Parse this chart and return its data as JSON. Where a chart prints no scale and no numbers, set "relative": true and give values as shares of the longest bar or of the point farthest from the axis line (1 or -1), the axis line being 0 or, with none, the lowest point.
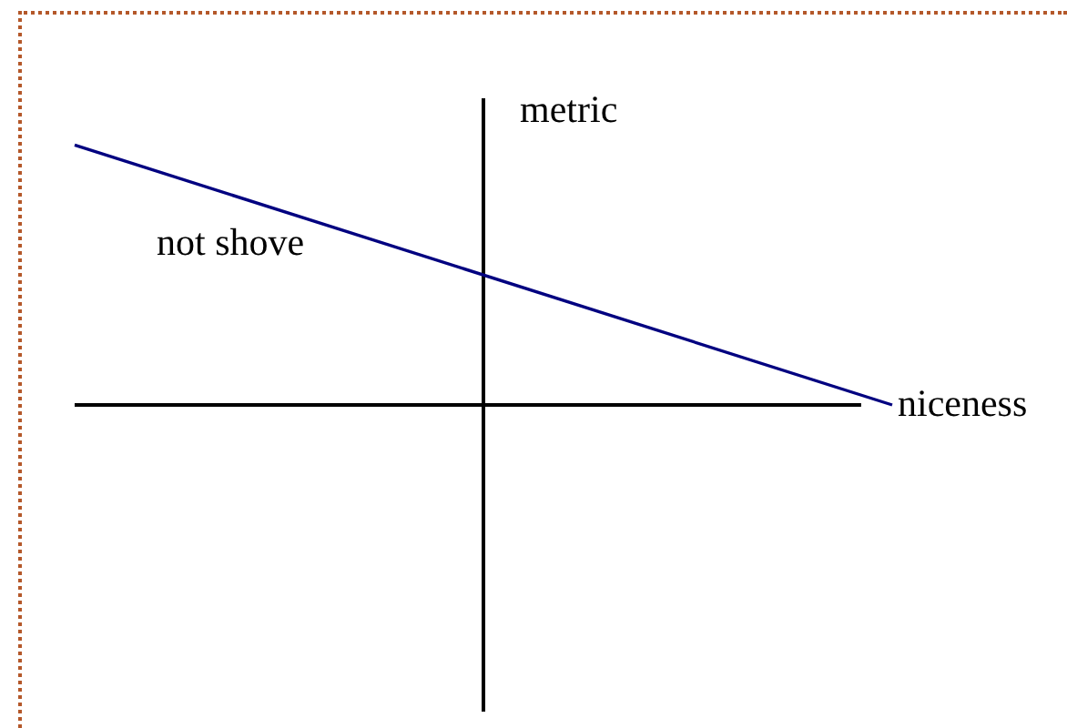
{
  "chart_data": {
    "type": "line",
    "relative": true,
    "xlabel": "niceness",
    "ylabel": "metric",
    "annotations": [
      "not shove"
    ],
    "categories": [
      null,
      null
    ],
    "values": [
      1,
      0
    ],
    "color": "#000080",
    "marker": "none"
  }
}
